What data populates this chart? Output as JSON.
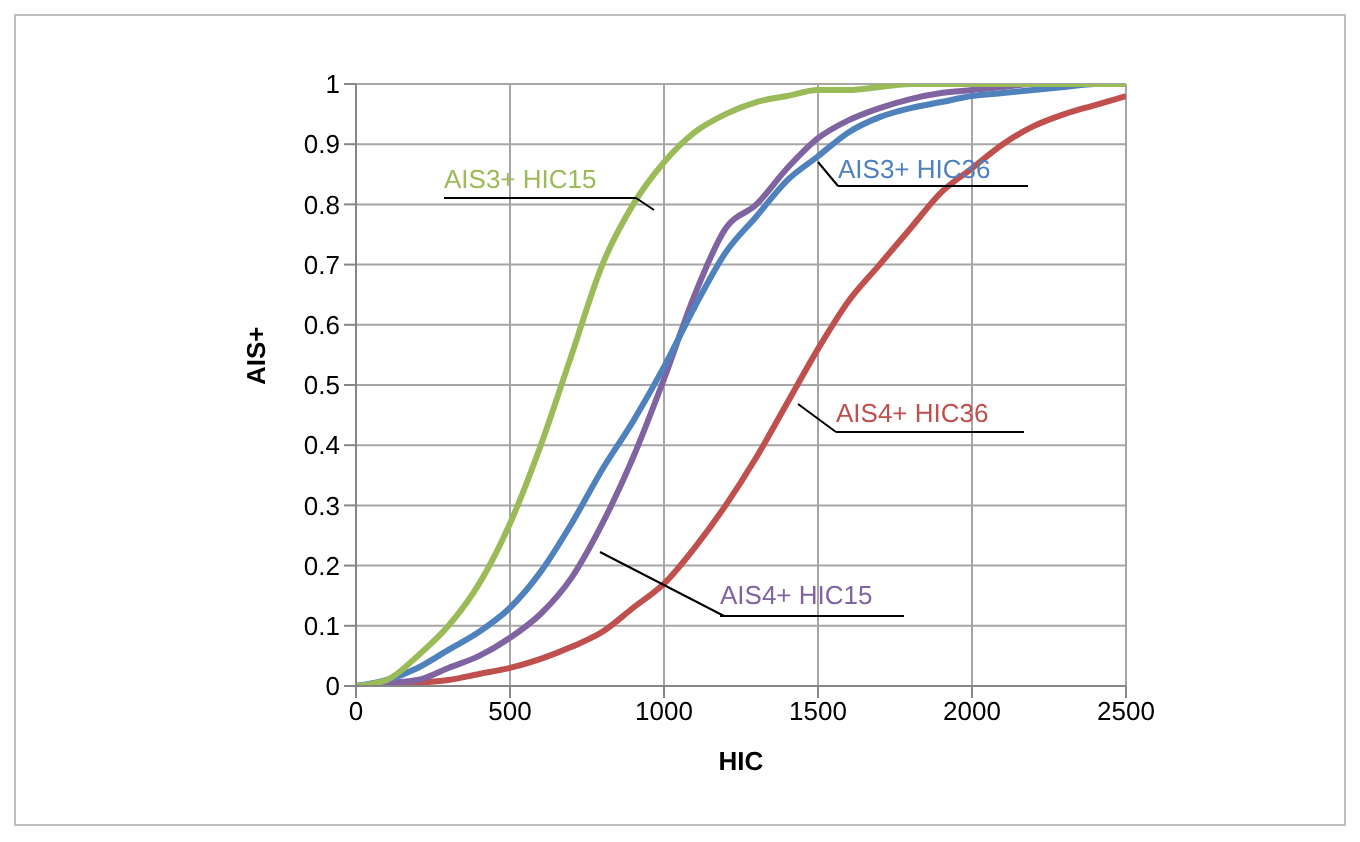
{
  "chart_data": {
    "type": "line",
    "xlabel": "HIC",
    "ylabel": "AIS+",
    "x": [
      0,
      100,
      200,
      300,
      400,
      500,
      600,
      700,
      800,
      900,
      1000,
      1100,
      1200,
      1300,
      1400,
      1500,
      1600,
      1700,
      1800,
      1900,
      2000,
      2100,
      2200,
      2300,
      2400,
      2500
    ],
    "series": [
      {
        "name": "AIS3+ HIC15",
        "color": "#9bbb59",
        "values": [
          0,
          0.01,
          0.05,
          0.1,
          0.17,
          0.27,
          0.4,
          0.55,
          0.7,
          0.8,
          0.87,
          0.92,
          0.95,
          0.97,
          0.98,
          0.99,
          0.99,
          0.995,
          1,
          1,
          1,
          1,
          1,
          1,
          1,
          1
        ]
      },
      {
        "name": "AIS3+ HIC36",
        "color": "#4f81bd",
        "values": [
          0,
          0.01,
          0.03,
          0.06,
          0.09,
          0.13,
          0.19,
          0.27,
          0.36,
          0.44,
          0.53,
          0.63,
          0.72,
          0.78,
          0.84,
          0.88,
          0.92,
          0.945,
          0.96,
          0.97,
          0.98,
          0.985,
          0.99,
          0.995,
          1,
          1
        ]
      },
      {
        "name": "AIS4+ HIC15",
        "color": "#8064a2",
        "values": [
          0,
          0.005,
          0.01,
          0.03,
          0.05,
          0.08,
          0.12,
          0.18,
          0.27,
          0.38,
          0.51,
          0.65,
          0.76,
          0.8,
          0.86,
          0.91,
          0.94,
          0.96,
          0.975,
          0.985,
          0.99,
          0.995,
          1,
          1,
          1,
          1
        ]
      },
      {
        "name": "AIS4+ HIC36",
        "color": "#c0504d",
        "values": [
          0,
          0,
          0.005,
          0.01,
          0.02,
          0.03,
          0.045,
          0.065,
          0.09,
          0.13,
          0.17,
          0.23,
          0.3,
          0.38,
          0.47,
          0.56,
          0.64,
          0.7,
          0.76,
          0.82,
          0.86,
          0.9,
          0.93,
          0.95,
          0.965,
          0.98
        ]
      }
    ],
    "xlim": [
      0,
      2500
    ],
    "xticks": [
      0,
      500,
      1000,
      1500,
      2000,
      2500
    ],
    "ylim": [
      0,
      1
    ],
    "yticks": [
      0,
      0.1,
      0.2,
      0.3,
      0.4,
      0.5,
      0.6,
      0.7,
      0.8,
      0.9,
      1
    ],
    "grid": true,
    "legend": false,
    "marker": "none",
    "line_style": "solid"
  }
}
